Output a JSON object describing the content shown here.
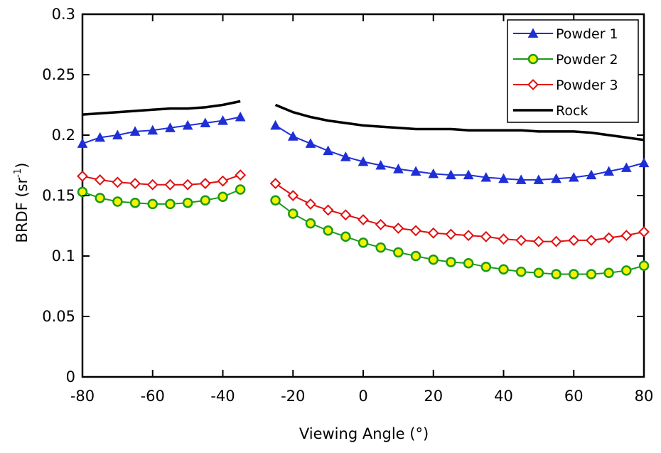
{
  "chart_data": {
    "type": "line",
    "xlabel": "Viewing Angle (°)",
    "ylabel": {
      "main": "BRDF (sr",
      "sup": "-1",
      "close": ")"
    },
    "xlim": [
      -80,
      80
    ],
    "ylim": [
      0,
      0.3
    ],
    "xticks": [
      -80,
      -60,
      -40,
      -20,
      0,
      20,
      40,
      60,
      80
    ],
    "yticks": [
      0,
      0.05,
      0.1,
      0.15,
      0.2,
      0.25,
      0.3
    ],
    "xtick_labels": [
      "-80",
      "-60",
      "-40",
      "-20",
      "0",
      "20",
      "40",
      "60",
      "80"
    ],
    "ytick_labels": [
      "0",
      "0.05",
      "0.1",
      "0.15",
      "0.2",
      "0.25",
      "0.3"
    ],
    "grid": false,
    "legend_position": "top-right",
    "series": [
      {
        "name": "Powder 1",
        "color": "#1f2fd6",
        "marker": "triangle",
        "segments": [
          {
            "x": [
              -80,
              -75,
              -70,
              -65,
              -60,
              -55,
              -50,
              -45,
              -40,
              -35
            ],
            "y": [
              0.193,
              0.198,
              0.2,
              0.203,
              0.204,
              0.206,
              0.208,
              0.21,
              0.212,
              0.215
            ]
          },
          {
            "x": [
              -25,
              -20,
              -15,
              -10,
              -5,
              0,
              5,
              10,
              15,
              20,
              25,
              30,
              35,
              40,
              45,
              50,
              55,
              60,
              65,
              70,
              75,
              80
            ],
            "y": [
              0.208,
              0.199,
              0.193,
              0.187,
              0.182,
              0.178,
              0.175,
              0.172,
              0.17,
              0.168,
              0.167,
              0.167,
              0.165,
              0.164,
              0.163,
              0.163,
              0.164,
              0.165,
              0.167,
              0.17,
              0.173,
              0.177
            ]
          }
        ]
      },
      {
        "name": "Powder 2",
        "color": "#1a9a1a",
        "marker": "circle",
        "segments": [
          {
            "x": [
              -80,
              -75,
              -70,
              -65,
              -60,
              -55,
              -50,
              -45,
              -40,
              -35
            ],
            "y": [
              0.153,
              0.148,
              0.145,
              0.144,
              0.143,
              0.143,
              0.144,
              0.146,
              0.149,
              0.155
            ]
          },
          {
            "x": [
              -25,
              -20,
              -15,
              -10,
              -5,
              0,
              5,
              10,
              15,
              20,
              25,
              30,
              35,
              40,
              45,
              50,
              55,
              60,
              65,
              70,
              75,
              80
            ],
            "y": [
              0.146,
              0.135,
              0.127,
              0.121,
              0.116,
              0.111,
              0.107,
              0.103,
              0.1,
              0.097,
              0.095,
              0.094,
              0.091,
              0.089,
              0.087,
              0.086,
              0.085,
              0.085,
              0.085,
              0.086,
              0.088,
              0.092
            ]
          }
        ]
      },
      {
        "name": "Powder 3",
        "color": "#e01010",
        "marker": "diamond",
        "segments": [
          {
            "x": [
              -80,
              -75,
              -70,
              -65,
              -60,
              -55,
              -50,
              -45,
              -40,
              -35
            ],
            "y": [
              0.166,
              0.163,
              0.161,
              0.16,
              0.159,
              0.159,
              0.159,
              0.16,
              0.162,
              0.167
            ]
          },
          {
            "x": [
              -25,
              -20,
              -15,
              -10,
              -5,
              0,
              5,
              10,
              15,
              20,
              25,
              30,
              35,
              40,
              45,
              50,
              55,
              60,
              65,
              70,
              75,
              80
            ],
            "y": [
              0.16,
              0.15,
              0.143,
              0.138,
              0.134,
              0.13,
              0.126,
              0.123,
              0.121,
              0.119,
              0.118,
              0.117,
              0.116,
              0.114,
              0.113,
              0.112,
              0.112,
              0.113,
              0.113,
              0.115,
              0.117,
              0.12
            ]
          }
        ]
      },
      {
        "name": "Rock",
        "color": "#000000",
        "marker": "none",
        "segments": [
          {
            "x": [
              -80,
              -75,
              -70,
              -65,
              -60,
              -55,
              -50,
              -45,
              -40,
              -35
            ],
            "y": [
              0.217,
              0.218,
              0.219,
              0.22,
              0.221,
              0.222,
              0.222,
              0.223,
              0.225,
              0.228
            ]
          },
          {
            "x": [
              -25,
              -20,
              -15,
              -10,
              -5,
              0,
              5,
              10,
              15,
              20,
              25,
              30,
              35,
              40,
              45,
              50,
              55,
              60,
              65,
              70,
              75,
              80
            ],
            "y": [
              0.225,
              0.219,
              0.215,
              0.212,
              0.21,
              0.208,
              0.207,
              0.206,
              0.205,
              0.205,
              0.205,
              0.204,
              0.204,
              0.204,
              0.204,
              0.203,
              0.203,
              0.203,
              0.202,
              0.2,
              0.198,
              0.196
            ]
          }
        ]
      }
    ]
  }
}
